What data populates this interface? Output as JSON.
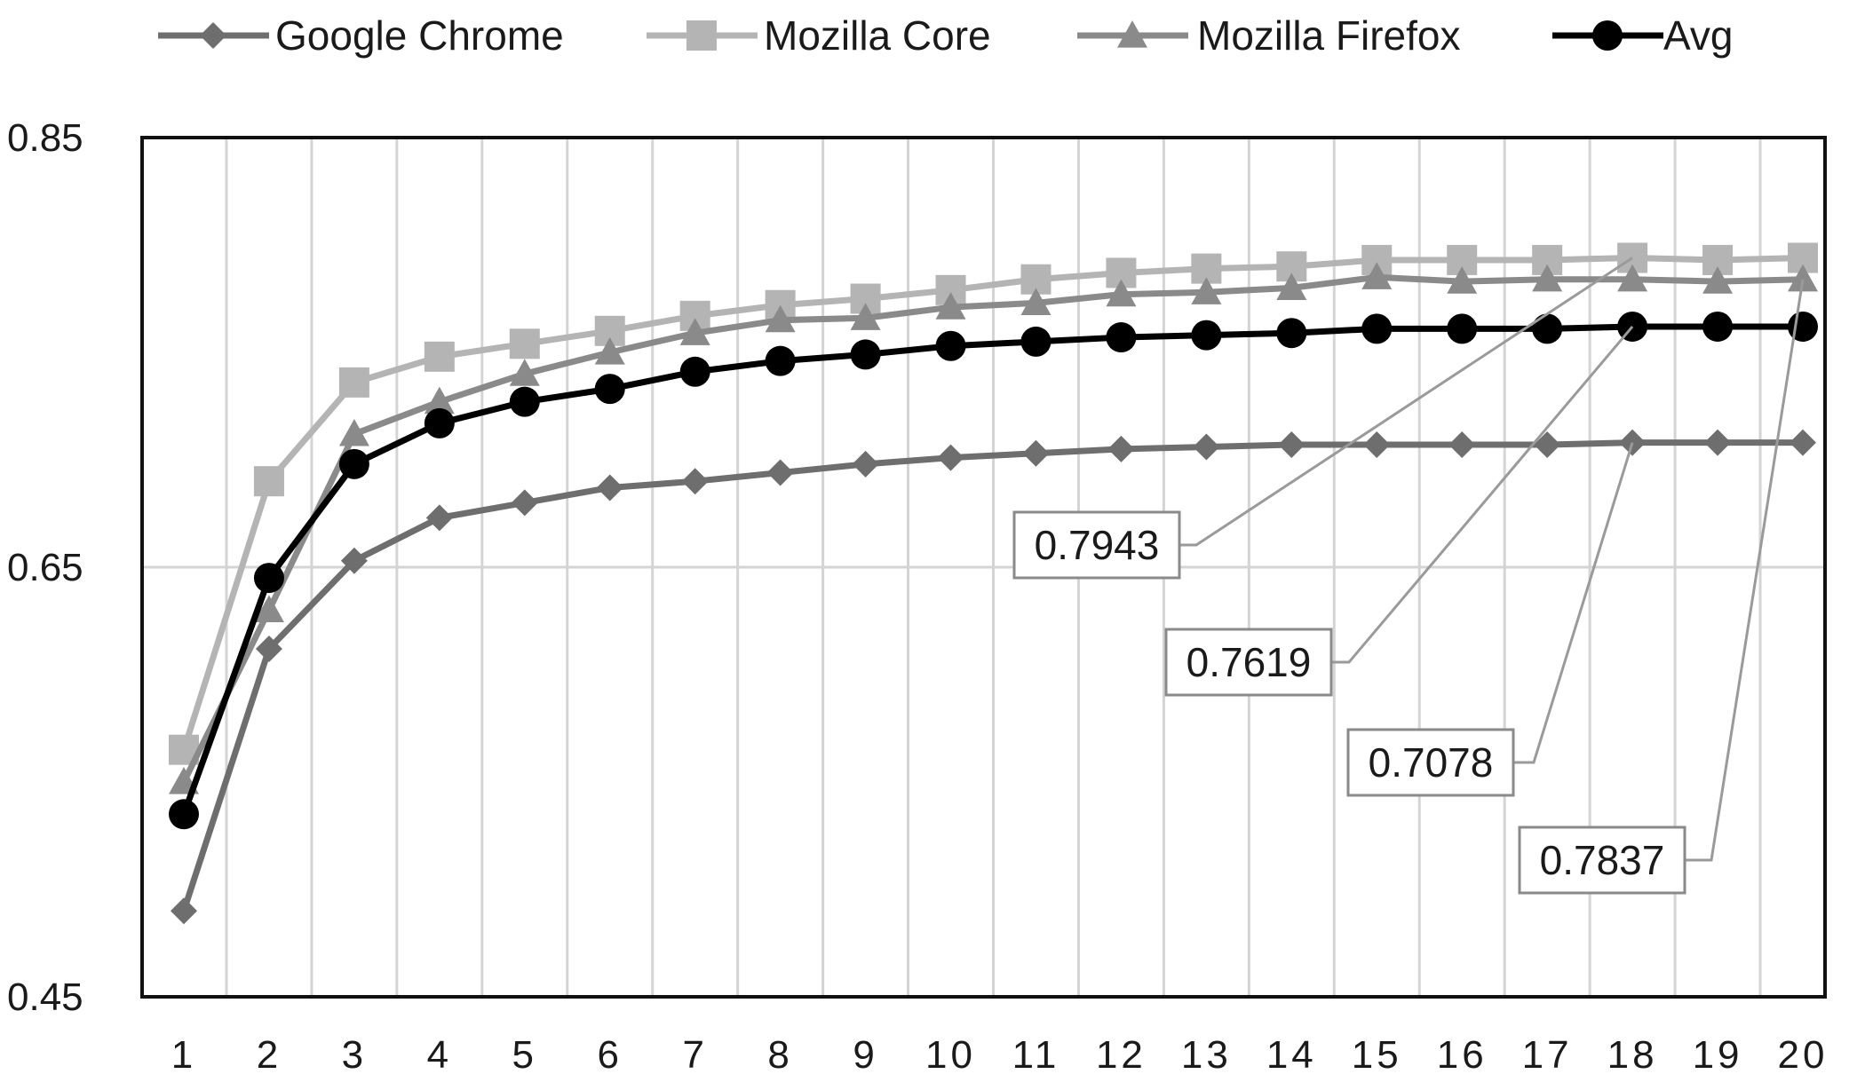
{
  "chart_data": {
    "type": "line",
    "title": "",
    "xlabel": "",
    "ylabel": "",
    "categories": [
      "1",
      "2",
      "3",
      "4",
      "5",
      "6",
      "7",
      "8",
      "9",
      "10",
      "11",
      "12",
      "13",
      "14",
      "15",
      "16",
      "17",
      "18",
      "19",
      "20"
    ],
    "ylim": [
      0.45,
      0.85
    ],
    "yticks": [
      "0.45",
      "0.65",
      "0.85"
    ],
    "grid": "vertical and horizontal",
    "legend": "top",
    "series": [
      {
        "name": "Google Chrome",
        "marker": "diamond",
        "color": "#6e6e6e",
        "values": [
          0.49,
          0.612,
          0.653,
          0.673,
          0.68,
          0.687,
          0.69,
          0.694,
          0.698,
          0.701,
          0.703,
          0.705,
          0.706,
          0.707,
          0.707,
          0.707,
          0.707,
          0.708,
          0.708,
          0.708
        ]
      },
      {
        "name": "Mozilla Core",
        "marker": "square",
        "color": "#b4b4b4",
        "values": [
          0.565,
          0.69,
          0.736,
          0.748,
          0.754,
          0.76,
          0.767,
          0.772,
          0.775,
          0.779,
          0.784,
          0.787,
          0.789,
          0.79,
          0.793,
          0.793,
          0.793,
          0.794,
          0.793,
          0.794
        ]
      },
      {
        "name": "Mozilla Firefox",
        "marker": "triangle",
        "color": "#8a8a8a",
        "values": [
          0.55,
          0.63,
          0.712,
          0.727,
          0.74,
          0.75,
          0.759,
          0.765,
          0.766,
          0.771,
          0.773,
          0.777,
          0.778,
          0.78,
          0.785,
          0.783,
          0.784,
          0.784,
          0.783,
          0.784
        ]
      },
      {
        "name": "Avg",
        "marker": "circle",
        "color": "#000000",
        "values": [
          0.535,
          0.645,
          0.698,
          0.717,
          0.727,
          0.733,
          0.741,
          0.746,
          0.749,
          0.753,
          0.755,
          0.757,
          0.758,
          0.759,
          0.761,
          0.761,
          0.761,
          0.762,
          0.762,
          0.762
        ]
      }
    ],
    "annotations": [
      {
        "text": "0.7943",
        "series": "Mozilla Core",
        "category": "18"
      },
      {
        "text": "0.7619",
        "series": "Avg",
        "category": "18"
      },
      {
        "text": "0.7078",
        "series": "Google Chrome",
        "category": "18"
      },
      {
        "text": "0.7837",
        "series": "Mozilla Firefox",
        "category": "20"
      }
    ]
  }
}
